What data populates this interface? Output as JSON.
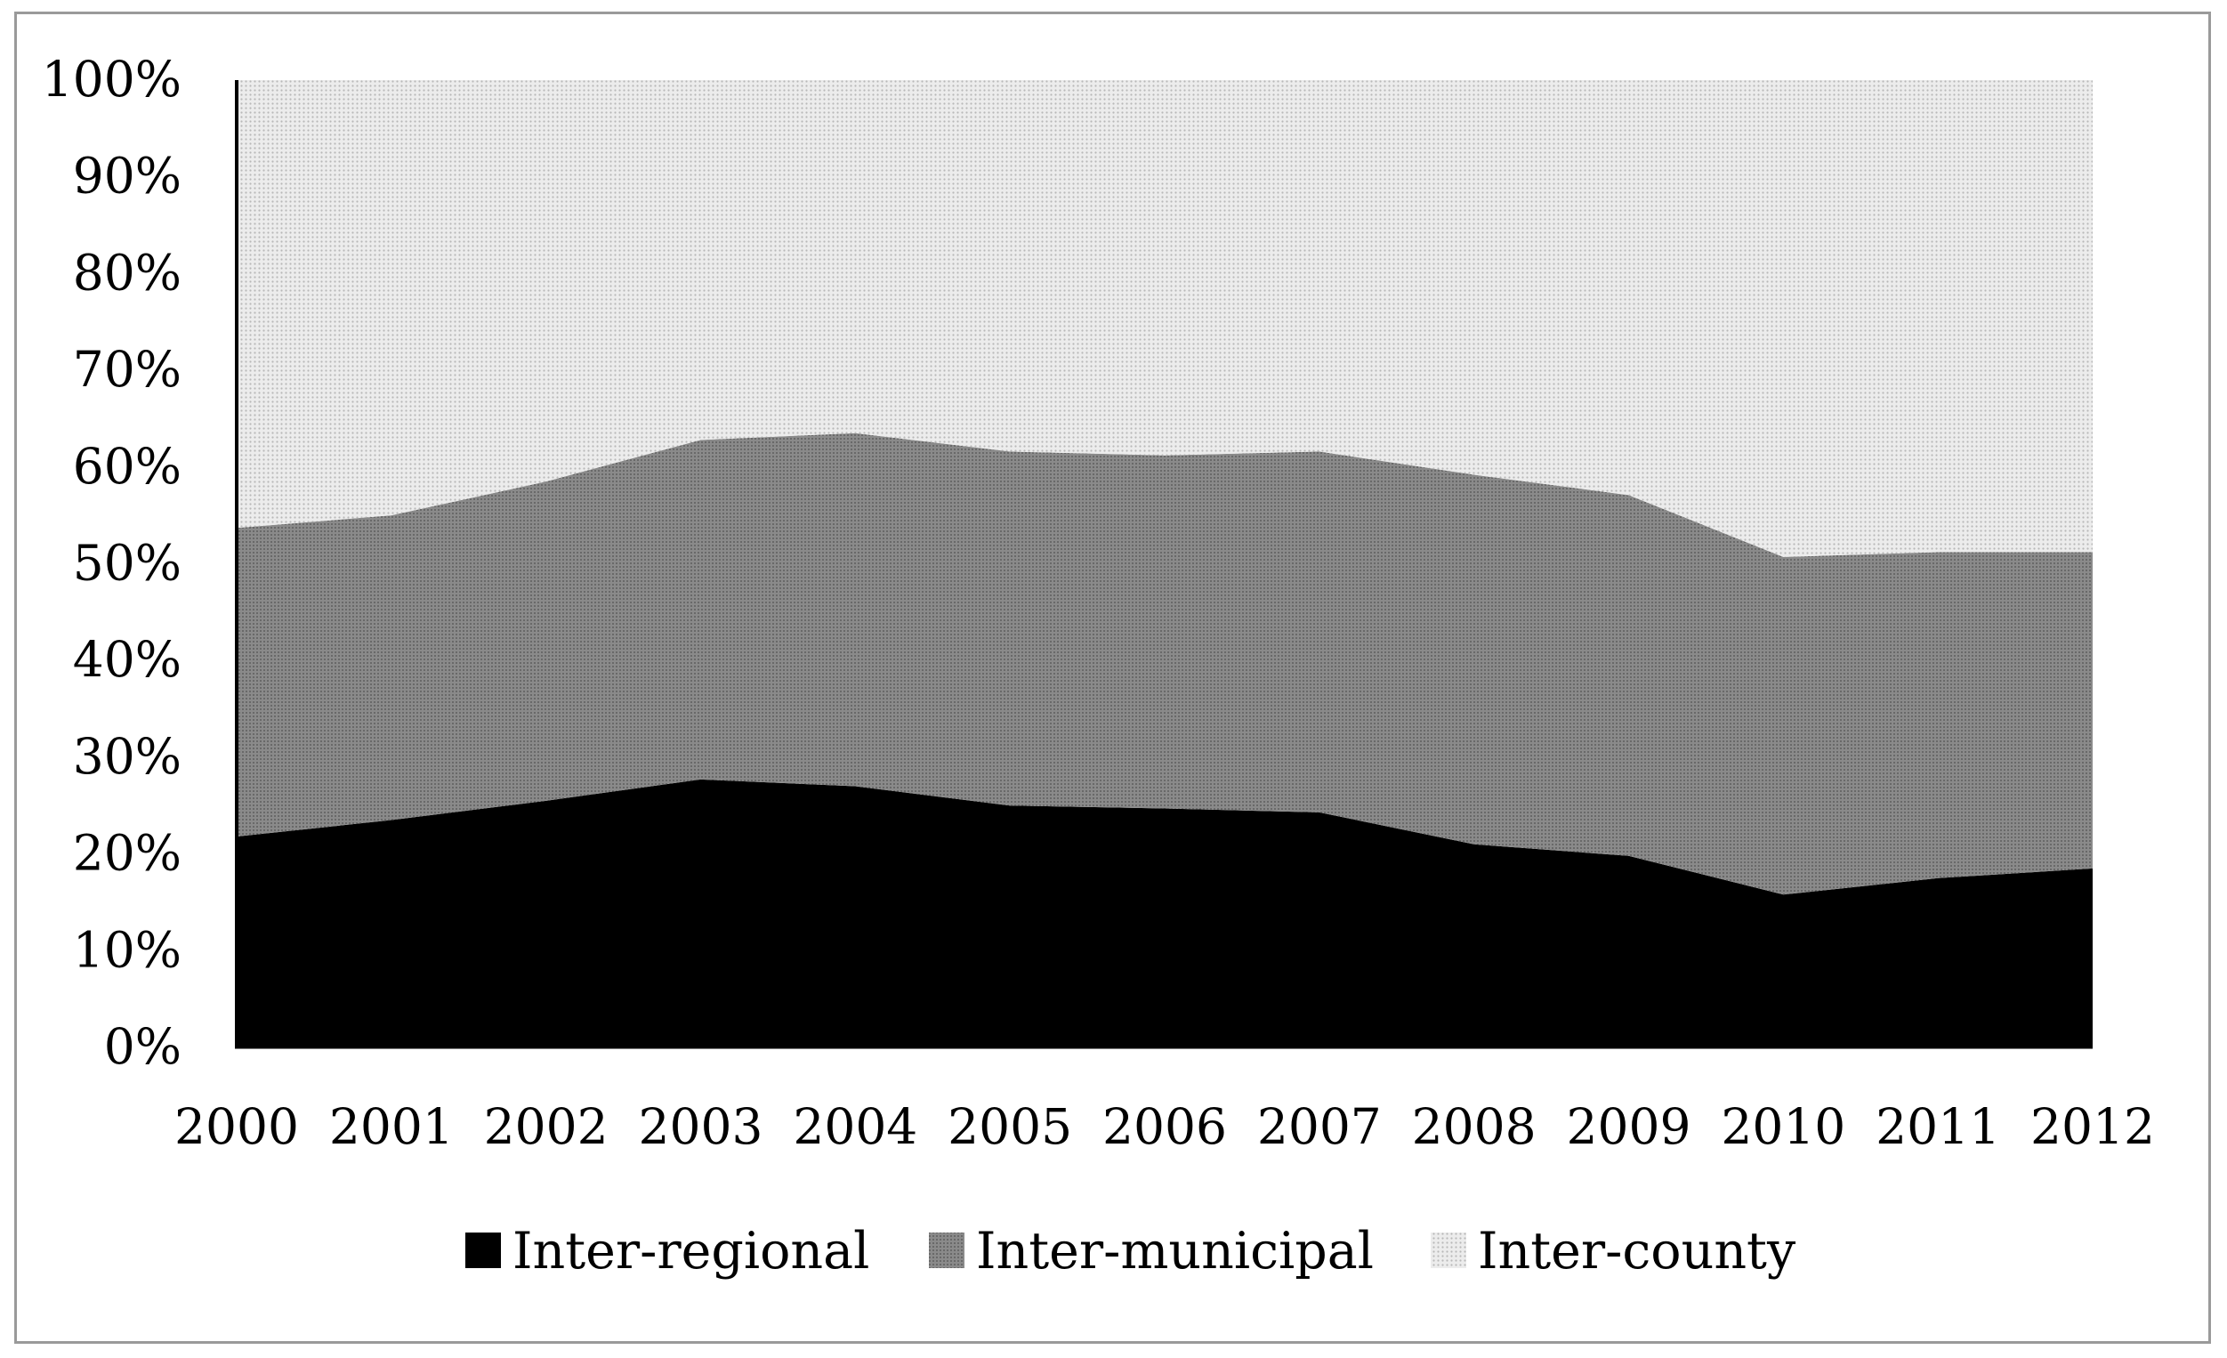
{
  "chart_data": {
    "type": "area",
    "stacked": true,
    "percent": true,
    "title": "",
    "xlabel": "",
    "ylabel": "",
    "x": [
      "2000",
      "2001",
      "2002",
      "2003",
      "2004",
      "2005",
      "2006",
      "2007",
      "2008",
      "2009",
      "2010",
      "2011",
      "2012"
    ],
    "ylim": [
      0,
      100
    ],
    "yticks": [
      0,
      10,
      20,
      30,
      40,
      50,
      60,
      70,
      80,
      90,
      100
    ],
    "ytick_labels": [
      "0%",
      "10%",
      "20%",
      "30%",
      "40%",
      "50%",
      "60%",
      "70%",
      "80%",
      "90%",
      "100%"
    ],
    "grid": false,
    "legend_position": "bottom",
    "series": [
      {
        "name": "Inter-regional",
        "color": "#000000",
        "fill": "solid-black",
        "values": [
          21.8,
          23.5,
          25.5,
          27.7,
          27.0,
          25.0,
          24.7,
          24.3,
          21.0,
          19.8,
          15.8,
          17.5,
          18.5
        ]
      },
      {
        "name": "Inter-municipal",
        "color": "#777777",
        "fill": "dark-gray-texture",
        "values": [
          31.9,
          31.5,
          33.0,
          35.1,
          36.5,
          36.6,
          36.5,
          37.3,
          38.2,
          37.3,
          34.9,
          33.7,
          32.7
        ]
      },
      {
        "name": "Inter-county",
        "color": "#e4e4e4",
        "fill": "light-gray-dots",
        "values": [
          46.3,
          45.0,
          41.5,
          37.2,
          36.5,
          38.4,
          38.8,
          38.4,
          40.8,
          42.9,
          49.3,
          48.8,
          48.8
        ]
      }
    ]
  }
}
